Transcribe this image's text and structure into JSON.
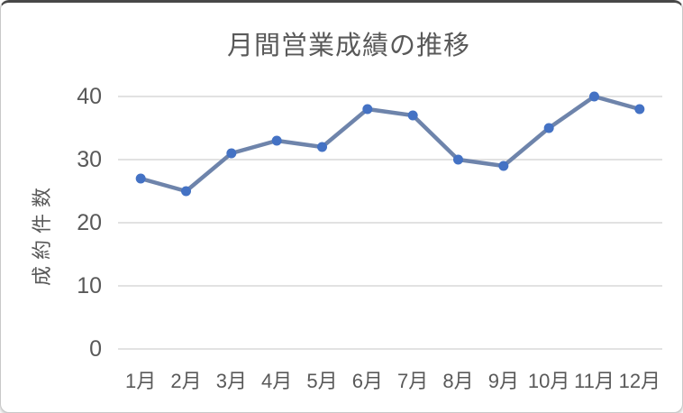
{
  "chart_data": {
    "type": "line",
    "title": "月間営業成績の推移",
    "ylabel": "成約件数",
    "xlabel": "",
    "categories": [
      "1月",
      "2月",
      "3月",
      "4月",
      "5月",
      "6月",
      "7月",
      "8月",
      "9月",
      "10月",
      "11月",
      "12月"
    ],
    "values": [
      27,
      25,
      31,
      33,
      32,
      38,
      37,
      30,
      29,
      35,
      40,
      38
    ],
    "ylim": [
      0,
      40
    ],
    "yticks": [
      40,
      30,
      20,
      10,
      0
    ],
    "grid": true,
    "legend": "none",
    "colors": {
      "line": "#6e84ab",
      "marker": "#4472c4",
      "gridline": "#d9d9d9",
      "text": "#595959"
    }
  }
}
